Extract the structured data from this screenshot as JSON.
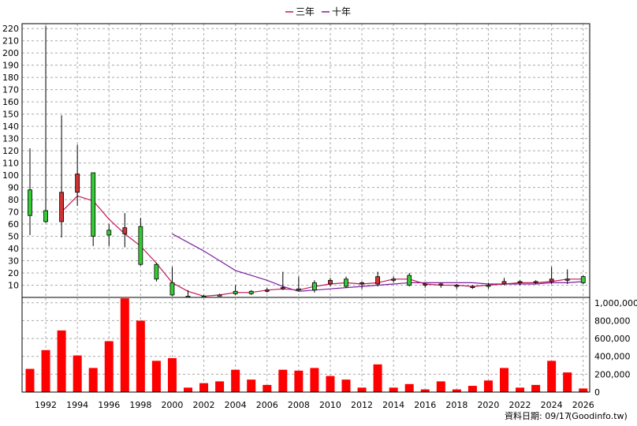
{
  "chart_data": {
    "type": "candlestick",
    "legend": [
      {
        "label": "三年",
        "color": "#c2185b"
      },
      {
        "label": "十年",
        "color": "#7b1fa2"
      }
    ],
    "x_ticks": [
      "1992",
      "1994",
      "1996",
      "1998",
      "2000",
      "2002",
      "2004",
      "2006",
      "2008",
      "2010",
      "2012",
      "2014",
      "2016",
      "2018",
      "2020",
      "2022",
      "2024",
      "2026"
    ],
    "price_ticks": [
      "10",
      "20",
      "30",
      "40",
      "50",
      "60",
      "70",
      "80",
      "90",
      "100",
      "110",
      "120",
      "130",
      "140",
      "150",
      "160",
      "170",
      "180",
      "190",
      "200",
      "210",
      "220"
    ],
    "volume_ticks": [
      "0",
      "200,000",
      "400,000",
      "600,000",
      "800,000",
      "1,000,000"
    ],
    "price_range": [
      0,
      224
    ],
    "volume_range": [
      0,
      1060000
    ],
    "candles": [
      {
        "year": 1991,
        "open": 67,
        "high": 122,
        "low": 51,
        "close": 88
      },
      {
        "year": 1992,
        "open": 62,
        "high": 222,
        "low": 61,
        "close": 71
      },
      {
        "year": 1993,
        "open": 86,
        "high": 149,
        "low": 49,
        "close": 62
      },
      {
        "year": 1994,
        "open": 101,
        "high": 125,
        "low": 75,
        "close": 86
      },
      {
        "year": 1995,
        "open": 50,
        "high": 102,
        "low": 42,
        "close": 102
      },
      {
        "year": 1996,
        "open": 51,
        "high": 60,
        "low": 42,
        "close": 55
      },
      {
        "year": 1997,
        "open": 57,
        "high": 69,
        "low": 41,
        "close": 52
      },
      {
        "year": 1998,
        "open": 27,
        "high": 65,
        "low": 26,
        "close": 58
      },
      {
        "year": 1999,
        "open": 15,
        "high": 28,
        "low": 13,
        "close": 27
      },
      {
        "year": 2000,
        "open": 2,
        "high": 25,
        "low": 1,
        "close": 12
      },
      {
        "year": 2001,
        "open": 1,
        "high": 6,
        "low": 0,
        "close": 1
      },
      {
        "year": 2002,
        "open": 1,
        "high": 2,
        "low": 0,
        "close": 1
      },
      {
        "year": 2003,
        "open": 2,
        "high": 3,
        "low": 1,
        "close": 2
      },
      {
        "year": 2004,
        "open": 3,
        "high": 10,
        "low": 2,
        "close": 5
      },
      {
        "year": 2005,
        "open": 3,
        "high": 6,
        "low": 2,
        "close": 5
      },
      {
        "year": 2006,
        "open": 6,
        "high": 8,
        "low": 4,
        "close": 5
      },
      {
        "year": 2007,
        "open": 8,
        "high": 21,
        "low": 6,
        "close": 7
      },
      {
        "year": 2008,
        "open": 6,
        "high": 17,
        "low": 5,
        "close": 7
      },
      {
        "year": 2009,
        "open": 6,
        "high": 14,
        "low": 4,
        "close": 12
      },
      {
        "year": 2010,
        "open": 14,
        "high": 16,
        "low": 9,
        "close": 11
      },
      {
        "year": 2011,
        "open": 9,
        "high": 17,
        "low": 8,
        "close": 15
      },
      {
        "year": 2012,
        "open": 12,
        "high": 13,
        "low": 7,
        "close": 11
      },
      {
        "year": 2013,
        "open": 17,
        "high": 21,
        "low": 9,
        "close": 11
      },
      {
        "year": 2014,
        "open": 15,
        "high": 17,
        "low": 12,
        "close": 14
      },
      {
        "year": 2015,
        "open": 10,
        "high": 20,
        "low": 9,
        "close": 18
      },
      {
        "year": 2016,
        "open": 11,
        "high": 12,
        "low": 8,
        "close": 10
      },
      {
        "year": 2017,
        "open": 11,
        "high": 12,
        "low": 8,
        "close": 10
      },
      {
        "year": 2018,
        "open": 10,
        "high": 11,
        "low": 7,
        "close": 9
      },
      {
        "year": 2019,
        "open": 9,
        "high": 10,
        "low": 7,
        "close": 8
      },
      {
        "year": 2020,
        "open": 9,
        "high": 12,
        "low": 7,
        "close": 10
      },
      {
        "year": 2021,
        "open": 13,
        "high": 16,
        "low": 10,
        "close": 11
      },
      {
        "year": 2022,
        "open": 13,
        "high": 14,
        "low": 10,
        "close": 12
      },
      {
        "year": 2023,
        "open": 13,
        "high": 14,
        "low": 11,
        "close": 12
      },
      {
        "year": 2024,
        "open": 15,
        "high": 25,
        "low": 11,
        "close": 13
      },
      {
        "year": 2025,
        "open": 15,
        "high": 23,
        "low": 11,
        "close": 14
      },
      {
        "year": 2026,
        "open": 12,
        "high": 18,
        "low": 11,
        "close": 17
      }
    ],
    "ma3": [
      {
        "year": 1993,
        "value": 70
      },
      {
        "year": 1994,
        "value": 83
      },
      {
        "year": 1995,
        "value": 79
      },
      {
        "year": 1996,
        "value": 64
      },
      {
        "year": 1997,
        "value": 52
      },
      {
        "year": 1998,
        "value": 42
      },
      {
        "year": 1999,
        "value": 28
      },
      {
        "year": 2000,
        "value": 12
      },
      {
        "year": 2001,
        "value": 5
      },
      {
        "year": 2002,
        "value": 1
      },
      {
        "year": 2003,
        "value": 2
      },
      {
        "year": 2004,
        "value": 4
      },
      {
        "year": 2005,
        "value": 4
      },
      {
        "year": 2006,
        "value": 6
      },
      {
        "year": 2007,
        "value": 7
      },
      {
        "year": 2008,
        "value": 6
      },
      {
        "year": 2009,
        "value": 9
      },
      {
        "year": 2010,
        "value": 11
      },
      {
        "year": 2011,
        "value": 12
      },
      {
        "year": 2012,
        "value": 11
      },
      {
        "year": 2013,
        "value": 12
      },
      {
        "year": 2014,
        "value": 15
      },
      {
        "year": 2015,
        "value": 15
      },
      {
        "year": 2016,
        "value": 11
      },
      {
        "year": 2017,
        "value": 10
      },
      {
        "year": 2018,
        "value": 10
      },
      {
        "year": 2019,
        "value": 9
      },
      {
        "year": 2020,
        "value": 10
      },
      {
        "year": 2021,
        "value": 11
      },
      {
        "year": 2022,
        "value": 12
      },
      {
        "year": 2023,
        "value": 12
      },
      {
        "year": 2024,
        "value": 13
      },
      {
        "year": 2025,
        "value": 15
      },
      {
        "year": 2026,
        "value": 15
      }
    ],
    "ma10": [
      {
        "year": 2000,
        "value": 52
      },
      {
        "year": 2001,
        "value": 45
      },
      {
        "year": 2002,
        "value": 38
      },
      {
        "year": 2003,
        "value": 30
      },
      {
        "year": 2004,
        "value": 22
      },
      {
        "year": 2005,
        "value": 18
      },
      {
        "year": 2006,
        "value": 14
      },
      {
        "year": 2007,
        "value": 9
      },
      {
        "year": 2008,
        "value": 5
      },
      {
        "year": 2009,
        "value": 6
      },
      {
        "year": 2010,
        "value": 7
      },
      {
        "year": 2011,
        "value": 8
      },
      {
        "year": 2012,
        "value": 9
      },
      {
        "year": 2013,
        "value": 10
      },
      {
        "year": 2014,
        "value": 11
      },
      {
        "year": 2015,
        "value": 12
      },
      {
        "year": 2016,
        "value": 12
      },
      {
        "year": 2017,
        "value": 12
      },
      {
        "year": 2018,
        "value": 12
      },
      {
        "year": 2019,
        "value": 12
      },
      {
        "year": 2020,
        "value": 11
      },
      {
        "year": 2021,
        "value": 11
      },
      {
        "year": 2022,
        "value": 11
      },
      {
        "year": 2023,
        "value": 11
      },
      {
        "year": 2024,
        "value": 12
      },
      {
        "year": 2025,
        "value": 12
      },
      {
        "year": 2026,
        "value": 13
      }
    ],
    "volume": [
      {
        "year": 1991,
        "value": 260000
      },
      {
        "year": 1992,
        "value": 470000
      },
      {
        "year": 1993,
        "value": 690000
      },
      {
        "year": 1994,
        "value": 410000
      },
      {
        "year": 1995,
        "value": 270000
      },
      {
        "year": 1996,
        "value": 570000
      },
      {
        "year": 1997,
        "value": 1050000
      },
      {
        "year": 1998,
        "value": 800000
      },
      {
        "year": 1999,
        "value": 350000
      },
      {
        "year": 2000,
        "value": 380000
      },
      {
        "year": 2001,
        "value": 50000
      },
      {
        "year": 2002,
        "value": 100000
      },
      {
        "year": 2003,
        "value": 120000
      },
      {
        "year": 2004,
        "value": 250000
      },
      {
        "year": 2005,
        "value": 140000
      },
      {
        "year": 2006,
        "value": 80000
      },
      {
        "year": 2007,
        "value": 250000
      },
      {
        "year": 2008,
        "value": 240000
      },
      {
        "year": 2009,
        "value": 270000
      },
      {
        "year": 2010,
        "value": 180000
      },
      {
        "year": 2011,
        "value": 140000
      },
      {
        "year": 2012,
        "value": 50000
      },
      {
        "year": 2013,
        "value": 310000
      },
      {
        "year": 2014,
        "value": 50000
      },
      {
        "year": 2015,
        "value": 90000
      },
      {
        "year": 2016,
        "value": 30000
      },
      {
        "year": 2017,
        "value": 120000
      },
      {
        "year": 2018,
        "value": 30000
      },
      {
        "year": 2019,
        "value": 70000
      },
      {
        "year": 2020,
        "value": 130000
      },
      {
        "year": 2021,
        "value": 270000
      },
      {
        "year": 2022,
        "value": 50000
      },
      {
        "year": 2023,
        "value": 80000
      },
      {
        "year": 2024,
        "value": 350000
      },
      {
        "year": 2025,
        "value": 220000
      },
      {
        "year": 2026,
        "value": 40000
      }
    ],
    "colors": {
      "up": "#33cc33",
      "down": "#cc3333",
      "volume": "#ff0000",
      "grid": "#aaaaaa",
      "wick": "#000000"
    },
    "grid": true,
    "legend_position": "top-center"
  },
  "footer": {
    "date_label": "資料日期: 09/17",
    "source": "(Goodinfo.tw)"
  }
}
